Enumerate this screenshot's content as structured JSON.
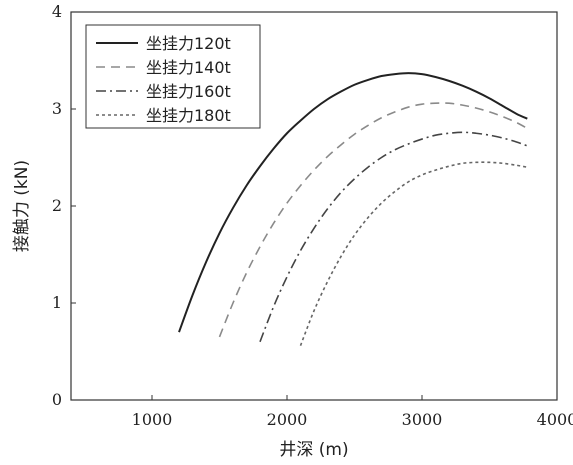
{
  "chart_data": {
    "type": "line",
    "xlabel": "井深 (m)",
    "ylabel": "接触力 (kN)",
    "xlim": [
      400,
      4000
    ],
    "ylim": [
      0,
      4
    ],
    "xticks": [
      1000,
      2000,
      3000,
      4000
    ],
    "yticks": [
      0,
      1,
      2,
      3,
      4
    ],
    "grid": false,
    "legend_position": "top-left",
    "series": [
      {
        "name": "坐挂力120t",
        "dash": "solid",
        "x": [
          1200,
          1300,
          1400,
          1500,
          1600,
          1700,
          1800,
          1900,
          2000,
          2100,
          2200,
          2300,
          2400,
          2500,
          2600,
          2700,
          2800,
          2900,
          3000,
          3100,
          3200,
          3300,
          3400,
          3500,
          3600,
          3700,
          3780
        ],
        "y": [
          0.7,
          1.08,
          1.42,
          1.72,
          1.98,
          2.21,
          2.41,
          2.59,
          2.75,
          2.88,
          3.0,
          3.1,
          3.18,
          3.25,
          3.3,
          3.34,
          3.36,
          3.37,
          3.36,
          3.33,
          3.29,
          3.24,
          3.18,
          3.11,
          3.03,
          2.95,
          2.9
        ]
      },
      {
        "name": "坐挂力140t",
        "dash": "dashed",
        "x": [
          1500,
          1600,
          1700,
          1800,
          1900,
          2000,
          2100,
          2200,
          2300,
          2400,
          2500,
          2600,
          2700,
          2800,
          2900,
          3000,
          3100,
          3200,
          3300,
          3400,
          3500,
          3600,
          3700,
          3780
        ],
        "y": [
          0.65,
          1.0,
          1.31,
          1.58,
          1.82,
          2.03,
          2.21,
          2.37,
          2.51,
          2.63,
          2.74,
          2.83,
          2.91,
          2.97,
          3.02,
          3.05,
          3.06,
          3.06,
          3.04,
          3.01,
          2.97,
          2.92,
          2.86,
          2.8
        ]
      },
      {
        "name": "坐挂力160t",
        "dash": "dashdot",
        "x": [
          1800,
          1900,
          2000,
          2100,
          2200,
          2300,
          2400,
          2500,
          2600,
          2700,
          2800,
          2900,
          3000,
          3100,
          3200,
          3300,
          3400,
          3500,
          3600,
          3700,
          3780
        ],
        "y": [
          0.6,
          0.96,
          1.27,
          1.54,
          1.77,
          1.97,
          2.14,
          2.28,
          2.4,
          2.5,
          2.58,
          2.64,
          2.69,
          2.73,
          2.75,
          2.76,
          2.75,
          2.73,
          2.7,
          2.66,
          2.62
        ]
      },
      {
        "name": "坐挂力180t",
        "dash": "dotted",
        "x": [
          2100,
          2200,
          2300,
          2400,
          2500,
          2600,
          2700,
          2800,
          2900,
          3000,
          3100,
          3200,
          3300,
          3400,
          3500,
          3600,
          3700,
          3780
        ],
        "y": [
          0.56,
          0.92,
          1.22,
          1.48,
          1.7,
          1.88,
          2.03,
          2.15,
          2.25,
          2.32,
          2.37,
          2.41,
          2.44,
          2.45,
          2.45,
          2.44,
          2.42,
          2.4
        ]
      }
    ]
  }
}
